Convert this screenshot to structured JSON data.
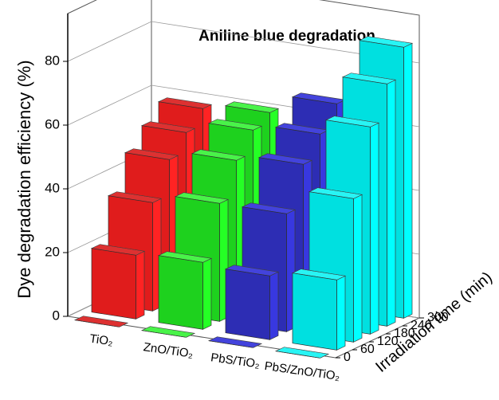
{
  "chart_data": {
    "type": "bar3d",
    "title": "Aniline blue degradation",
    "y_label": "Dye degradation efficiency (%)",
    "z_label": "Irradiation time (min)",
    "ylim": [
      0,
      95
    ],
    "yticks": [
      0,
      20,
      40,
      60,
      80
    ],
    "zlim": [
      0,
      300
    ],
    "zticks": [
      0,
      60,
      120,
      180,
      240,
      300
    ],
    "series": [
      {
        "name": "TiO₂",
        "color": "#ff2020",
        "values": [
          0,
          20,
          34,
          45,
          51,
          56
        ]
      },
      {
        "name": "ZnO/TiO₂",
        "color": "#22ee22",
        "values": [
          0,
          21,
          37,
          48,
          55,
          58
        ]
      },
      {
        "name": "PbS/TiO₂",
        "color": "#3333cc",
        "values": [
          0,
          20,
          37,
          50,
          57,
          64
        ]
      },
      {
        "name": "PbS/ZnO/TiO₂",
        "color": "#00ffff",
        "values": [
          0,
          22,
          45,
          65,
          76,
          85
        ]
      }
    ]
  }
}
